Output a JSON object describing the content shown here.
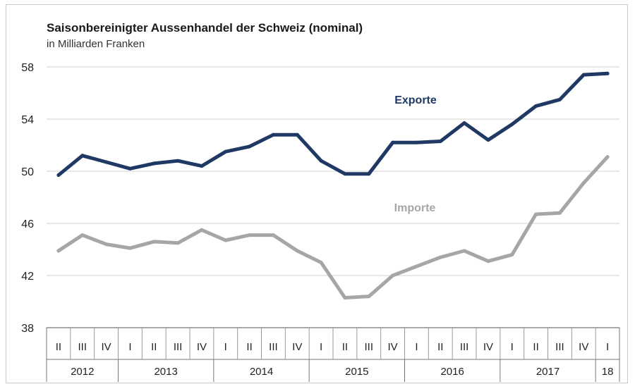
{
  "chart_data": {
    "type": "line",
    "title": "Saisonbereinigter Aussenhandel der Schweiz (nominal)",
    "subtitle": "in Milliarden Franken",
    "ylim": [
      38,
      58
    ],
    "yticks": [
      "38",
      "42",
      "46",
      "50",
      "54",
      "58"
    ],
    "quarters": [
      "II",
      "III",
      "IV",
      "I",
      "II",
      "III",
      "IV",
      "I",
      "II",
      "III",
      "IV",
      "I",
      "II",
      "III",
      "IV",
      "I",
      "II",
      "III",
      "IV",
      "I",
      "II",
      "III",
      "IV",
      "I"
    ],
    "years": [
      {
        "label": "2012",
        "span": 3
      },
      {
        "label": "2013",
        "span": 4
      },
      {
        "label": "2014",
        "span": 4
      },
      {
        "label": "2015",
        "span": 4
      },
      {
        "label": "2016",
        "span": 4
      },
      {
        "label": "2017",
        "span": 4
      },
      {
        "label": "18",
        "span": 1
      }
    ],
    "series": [
      {
        "name": "Exporte",
        "color": "#1f3864",
        "values": [
          49.7,
          51.2,
          50.7,
          50.2,
          50.6,
          50.8,
          50.4,
          51.5,
          51.9,
          52.8,
          52.8,
          50.8,
          49.8,
          49.8,
          52.2,
          52.2,
          52.3,
          53.7,
          52.4,
          53.6,
          55.0,
          55.5,
          57.4,
          57.5
        ]
      },
      {
        "name": "Importe",
        "color": "#a6a6a6",
        "values": [
          43.9,
          45.1,
          44.4,
          44.1,
          44.6,
          44.5,
          45.5,
          44.7,
          45.1,
          45.1,
          43.9,
          43.0,
          40.3,
          40.4,
          42.0,
          42.7,
          43.4,
          43.9,
          43.1,
          43.6,
          46.7,
          46.8,
          49.1,
          51.1
        ]
      }
    ]
  }
}
